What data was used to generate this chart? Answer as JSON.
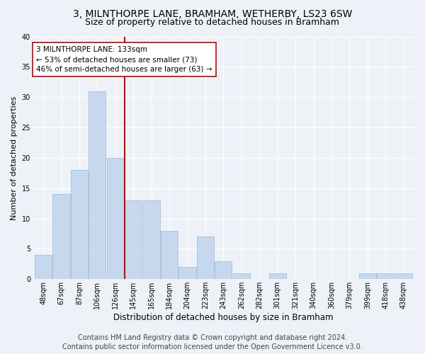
{
  "title1": "3, MILNTHORPE LANE, BRAMHAM, WETHERBY, LS23 6SW",
  "title2": "Size of property relative to detached houses in Bramham",
  "xlabel": "Distribution of detached houses by size in Bramham",
  "ylabel": "Number of detached properties",
  "bar_color": "#c5d8ed",
  "bar_edge_color": "#9ab8d8",
  "vline_color": "#cc0000",
  "vline_position": 4,
  "annotation_title": "3 MILNTHORPE LANE: 133sqm",
  "annotation_line1": "← 53% of detached houses are smaller (73)",
  "annotation_line2": "46% of semi-detached houses are larger (63) →",
  "annotation_box_color": "#ffffff",
  "annotation_box_edge": "#cc0000",
  "categories": [
    "48sqm",
    "67sqm",
    "87sqm",
    "106sqm",
    "126sqm",
    "145sqm",
    "165sqm",
    "184sqm",
    "204sqm",
    "223sqm",
    "243sqm",
    "262sqm",
    "282sqm",
    "301sqm",
    "321sqm",
    "340sqm",
    "360sqm",
    "379sqm",
    "399sqm",
    "418sqm",
    "438sqm"
  ],
  "values": [
    4,
    14,
    18,
    31,
    20,
    13,
    13,
    8,
    2,
    7,
    3,
    1,
    0,
    1,
    0,
    0,
    0,
    0,
    1,
    1,
    1
  ],
  "ylim": [
    0,
    40
  ],
  "yticks": [
    0,
    5,
    10,
    15,
    20,
    25,
    30,
    35,
    40
  ],
  "footer1": "Contains HM Land Registry data © Crown copyright and database right 2024.",
  "footer2": "Contains public sector information licensed under the Open Government Licence v3.0.",
  "bg_color": "#eef2f8",
  "grid_color": "#ffffff",
  "title1_fontsize": 10,
  "title2_fontsize": 9,
  "tick_fontsize": 7,
  "xlabel_fontsize": 8.5,
  "ylabel_fontsize": 8,
  "footer_fontsize": 7,
  "ann_fontsize": 7.5
}
